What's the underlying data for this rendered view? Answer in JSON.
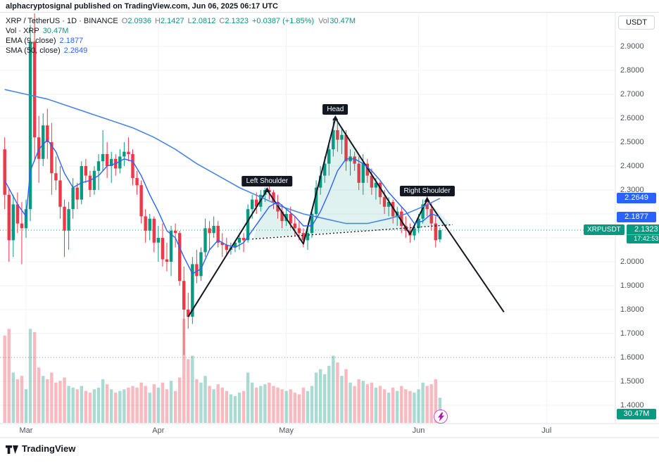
{
  "attribution": "alphacryptosignal published on TradingView.com, Jun 06, 2025 06:17 UTC",
  "header": {
    "symbol_line": {
      "title": "XRP / TetherUS · 1D · BINANCE",
      "ohlc": [
        [
          "O",
          "2.0936"
        ],
        [
          "H",
          "2.1427"
        ],
        [
          "L",
          "2.0812"
        ],
        [
          "C",
          "2.1323"
        ]
      ],
      "change": "+0.0387 (+1.85%)",
      "vol_label": "Vol",
      "vol_value": "30.47M"
    },
    "indicators": [
      {
        "label": "Vol · XRP",
        "value": "30.47M"
      },
      {
        "label": "EMA (9, close)",
        "value": "2.1877"
      },
      {
        "label": "SMA (50, close)",
        "value": "2.2649"
      }
    ]
  },
  "currency_button": "USDT",
  "badges": {
    "sma": "2.2649",
    "ema": "2.1877",
    "symbol": "XRPUSDT",
    "price": "2.1323",
    "countdown": "17:42:53",
    "volume": "30.47M"
  },
  "footer": {
    "brand": "TradingView"
  },
  "icons": {
    "lightning-icon": "⚡",
    "tradingview-logo": "TV"
  },
  "colors": {
    "up": "#089981",
    "down": "#f23645",
    "vol_up": "rgba(8,153,129,0.35)",
    "vol_down": "rgba(242,54,69,0.35)",
    "ema": "#2962ff",
    "sma": "#4a86e8",
    "badge_blue": "#2962ff",
    "badge_green": "#089981",
    "grid": "#f0f3fa",
    "axis_text": "#50535e",
    "pattern_line": "#131722"
  },
  "chart_data": {
    "type": "candlestick",
    "title": "XRP / TetherUS · 1D · BINANCE",
    "symbol": "XRPUSDT",
    "timeframe": "1D",
    "ylim": [
      1.3,
      3.07
    ],
    "grid": true,
    "price_axis_labels": [
      "2.9000",
      "2.8000",
      "2.7000",
      "2.6000",
      "2.5000",
      "2.4000",
      "2.3000",
      "2.0000",
      "1.9000",
      "1.8000",
      "1.7000",
      "1.6000",
      "1.5000",
      "1.4000"
    ],
    "time_axis": [
      {
        "label": "Mar",
        "i": 5
      },
      {
        "label": "Apr",
        "i": 36
      },
      {
        "label": "May",
        "i": 66
      },
      {
        "label": "Jun",
        "i": 97
      },
      {
        "label": "Jul",
        "i": 127
      }
    ],
    "candles": [
      [
        2.47,
        2.52,
        2.22,
        2.28
      ],
      [
        2.28,
        2.31,
        2.0,
        2.09
      ],
      [
        2.09,
        2.28,
        2.02,
        2.24
      ],
      [
        2.24,
        2.29,
        2.12,
        2.16
      ],
      [
        2.16,
        2.25,
        1.99,
        2.14
      ],
      [
        2.14,
        2.26,
        2.1,
        2.22
      ],
      [
        2.22,
        2.99,
        2.17,
        2.92
      ],
      [
        2.92,
        3.06,
        2.42,
        2.52
      ],
      [
        2.52,
        2.61,
        2.33,
        2.43
      ],
      [
        2.43,
        2.62,
        2.4,
        2.57
      ],
      [
        2.57,
        2.64,
        2.43,
        2.5
      ],
      [
        2.5,
        2.58,
        2.28,
        2.37
      ],
      [
        2.37,
        2.44,
        2.3,
        2.34
      ],
      [
        2.34,
        2.4,
        2.18,
        2.23
      ],
      [
        2.23,
        2.26,
        2.02,
        2.13
      ],
      [
        2.13,
        2.25,
        2.05,
        2.22
      ],
      [
        2.22,
        2.35,
        2.18,
        2.31
      ],
      [
        2.31,
        2.33,
        2.22,
        2.26
      ],
      [
        2.26,
        2.42,
        2.24,
        2.4
      ],
      [
        2.4,
        2.43,
        2.33,
        2.36
      ],
      [
        2.36,
        2.38,
        2.27,
        2.3
      ],
      [
        2.3,
        2.4,
        2.28,
        2.38
      ],
      [
        2.38,
        2.45,
        2.3,
        2.42
      ],
      [
        2.42,
        2.55,
        2.38,
        2.45
      ],
      [
        2.45,
        2.5,
        2.35,
        2.4
      ],
      [
        2.4,
        2.46,
        2.33,
        2.43
      ],
      [
        2.43,
        2.45,
        2.36,
        2.39
      ],
      [
        2.39,
        2.47,
        2.37,
        2.44
      ],
      [
        2.44,
        2.5,
        2.4,
        2.46
      ],
      [
        2.46,
        2.52,
        2.42,
        2.45
      ],
      [
        2.45,
        2.47,
        2.32,
        2.35
      ],
      [
        2.35,
        2.38,
        2.28,
        2.32
      ],
      [
        2.32,
        2.34,
        2.16,
        2.19
      ],
      [
        2.19,
        2.22,
        2.08,
        2.13
      ],
      [
        2.13,
        2.2,
        2.09,
        2.18
      ],
      [
        2.18,
        2.19,
        2.04,
        2.08
      ],
      [
        2.08,
        2.15,
        2.0,
        2.1
      ],
      [
        2.1,
        2.16,
        1.98,
        2.01
      ],
      [
        2.01,
        2.08,
        1.96,
        2.0
      ],
      [
        2.0,
        2.15,
        1.94,
        2.13
      ],
      [
        2.13,
        2.16,
        2.06,
        2.12
      ],
      [
        2.12,
        2.13,
        1.9,
        1.92
      ],
      [
        1.92,
        1.98,
        1.61,
        1.8
      ],
      [
        1.8,
        1.87,
        1.72,
        1.77
      ],
      [
        1.77,
        2.02,
        1.74,
        1.99
      ],
      [
        1.99,
        2.05,
        1.91,
        1.94
      ],
      [
        1.94,
        2.06,
        1.92,
        2.04
      ],
      [
        2.04,
        2.18,
        2.02,
        2.14
      ],
      [
        2.14,
        2.17,
        2.05,
        2.12
      ],
      [
        2.12,
        2.19,
        2.1,
        2.15
      ],
      [
        2.15,
        2.17,
        2.06,
        2.08
      ],
      [
        2.08,
        2.12,
        2.02,
        2.07
      ],
      [
        2.07,
        2.1,
        2.03,
        2.05
      ],
      [
        2.05,
        2.08,
        2.03,
        2.06
      ],
      [
        2.06,
        2.09,
        2.04,
        2.08
      ],
      [
        2.08,
        2.12,
        2.05,
        2.1
      ],
      [
        2.1,
        2.12,
        2.04,
        2.09
      ],
      [
        2.09,
        2.24,
        2.08,
        2.22
      ],
      [
        2.22,
        2.28,
        2.18,
        2.26
      ],
      [
        2.26,
        2.29,
        2.2,
        2.23
      ],
      [
        2.23,
        2.3,
        2.21,
        2.28
      ],
      [
        2.28,
        2.31,
        2.25,
        2.3
      ],
      [
        2.3,
        2.32,
        2.26,
        2.29
      ],
      [
        2.29,
        2.3,
        2.22,
        2.25
      ],
      [
        2.25,
        2.28,
        2.18,
        2.21
      ],
      [
        2.21,
        2.24,
        2.14,
        2.17
      ],
      [
        2.17,
        2.22,
        2.15,
        2.2
      ],
      [
        2.2,
        2.23,
        2.14,
        2.16
      ],
      [
        2.16,
        2.19,
        2.11,
        2.14
      ],
      [
        2.14,
        2.17,
        2.09,
        2.12
      ],
      [
        2.12,
        2.14,
        2.06,
        2.09
      ],
      [
        2.09,
        2.14,
        2.05,
        2.12
      ],
      [
        2.12,
        2.22,
        2.1,
        2.2
      ],
      [
        2.2,
        2.34,
        2.18,
        2.31
      ],
      [
        2.31,
        2.4,
        2.28,
        2.36
      ],
      [
        2.36,
        2.44,
        2.33,
        2.41
      ],
      [
        2.41,
        2.5,
        2.36,
        2.47
      ],
      [
        2.47,
        2.6,
        2.44,
        2.55
      ],
      [
        2.55,
        2.58,
        2.46,
        2.51
      ],
      [
        2.51,
        2.56,
        2.45,
        2.53
      ],
      [
        2.53,
        2.55,
        2.38,
        2.42
      ],
      [
        2.42,
        2.47,
        2.36,
        2.44
      ],
      [
        2.44,
        2.46,
        2.38,
        2.41
      ],
      [
        2.41,
        2.44,
        2.3,
        2.33
      ],
      [
        2.33,
        2.45,
        2.28,
        2.41
      ],
      [
        2.41,
        2.43,
        2.33,
        2.36
      ],
      [
        2.36,
        2.39,
        2.28,
        2.31
      ],
      [
        2.31,
        2.35,
        2.26,
        2.33
      ],
      [
        2.33,
        2.34,
        2.24,
        2.27
      ],
      [
        2.27,
        2.3,
        2.2,
        2.23
      ],
      [
        2.23,
        2.27,
        2.19,
        2.25
      ],
      [
        2.25,
        2.26,
        2.16,
        2.19
      ],
      [
        2.19,
        2.23,
        2.15,
        2.21
      ],
      [
        2.21,
        2.23,
        2.12,
        2.15
      ],
      [
        2.15,
        2.19,
        2.1,
        2.13
      ],
      [
        2.13,
        2.16,
        2.08,
        2.11
      ],
      [
        2.11,
        2.15,
        2.09,
        2.14
      ],
      [
        2.14,
        2.2,
        2.12,
        2.18
      ],
      [
        2.18,
        2.26,
        2.16,
        2.24
      ],
      [
        2.24,
        2.28,
        2.19,
        2.22
      ],
      [
        2.22,
        2.25,
        2.13,
        2.16
      ],
      [
        2.16,
        2.19,
        2.06,
        2.09
      ],
      [
        2.0936,
        2.1427,
        2.0812,
        2.1323
      ]
    ],
    "volumes": [
      520,
      560,
      300,
      260,
      280,
      200,
      560,
      540,
      330,
      280,
      260,
      300,
      240,
      250,
      270,
      220,
      210,
      200,
      220,
      190,
      180,
      200,
      210,
      260,
      230,
      200,
      180,
      190,
      200,
      210,
      220,
      210,
      240,
      220,
      180,
      230,
      210,
      240,
      200,
      250,
      190,
      270,
      620,
      380,
      400,
      260,
      240,
      280,
      220,
      200,
      230,
      210,
      190,
      170,
      160,
      180,
      190,
      300,
      240,
      210,
      220,
      230,
      240,
      220,
      210,
      200,
      190,
      200,
      180,
      170,
      210,
      190,
      220,
      300,
      320,
      290,
      340,
      400,
      360,
      280,
      320,
      240,
      220,
      260,
      250,
      230,
      240,
      210,
      220,
      200,
      180,
      210,
      190,
      220,
      200,
      190,
      180,
      200,
      240,
      220,
      230,
      260,
      150
    ],
    "vol_max": 620,
    "ema9": [
      [
        0,
        2.34
      ],
      [
        3,
        2.24
      ],
      [
        5,
        2.19
      ],
      [
        6,
        2.38
      ],
      [
        8,
        2.47
      ],
      [
        10,
        2.51
      ],
      [
        12,
        2.46
      ],
      [
        14,
        2.37
      ],
      [
        16,
        2.31
      ],
      [
        18,
        2.33
      ],
      [
        20,
        2.34
      ],
      [
        22,
        2.36
      ],
      [
        24,
        2.4
      ],
      [
        26,
        2.41
      ],
      [
        28,
        2.43
      ],
      [
        30,
        2.42
      ],
      [
        32,
        2.36
      ],
      [
        34,
        2.28
      ],
      [
        36,
        2.21
      ],
      [
        38,
        2.13
      ],
      [
        40,
        2.1
      ],
      [
        42,
        2.02
      ],
      [
        44,
        1.95
      ],
      [
        46,
        1.97
      ],
      [
        48,
        2.05
      ],
      [
        50,
        2.09
      ],
      [
        52,
        2.07
      ],
      [
        54,
        2.06
      ],
      [
        56,
        2.08
      ],
      [
        58,
        2.13
      ],
      [
        60,
        2.18
      ],
      [
        62,
        2.23
      ],
      [
        64,
        2.25
      ],
      [
        66,
        2.22
      ],
      [
        68,
        2.19
      ],
      [
        70,
        2.15
      ],
      [
        72,
        2.15
      ],
      [
        74,
        2.21
      ],
      [
        76,
        2.29
      ],
      [
        78,
        2.38
      ],
      [
        80,
        2.43
      ],
      [
        82,
        2.43
      ],
      [
        84,
        2.41
      ],
      [
        86,
        2.38
      ],
      [
        88,
        2.34
      ],
      [
        90,
        2.29
      ],
      [
        92,
        2.25
      ],
      [
        94,
        2.21
      ],
      [
        96,
        2.16
      ],
      [
        98,
        2.17
      ],
      [
        100,
        2.2
      ],
      [
        102,
        2.1877
      ]
    ],
    "sma50": [
      [
        0,
        2.72
      ],
      [
        5,
        2.7
      ],
      [
        10,
        2.68
      ],
      [
        15,
        2.65
      ],
      [
        20,
        2.62
      ],
      [
        25,
        2.59
      ],
      [
        30,
        2.56
      ],
      [
        35,
        2.52
      ],
      [
        40,
        2.47
      ],
      [
        45,
        2.41
      ],
      [
        50,
        2.36
      ],
      [
        55,
        2.31
      ],
      [
        60,
        2.27
      ],
      [
        65,
        2.23
      ],
      [
        70,
        2.2
      ],
      [
        75,
        2.18
      ],
      [
        80,
        2.16
      ],
      [
        85,
        2.16
      ],
      [
        90,
        2.18
      ],
      [
        94,
        2.2
      ],
      [
        98,
        2.23
      ],
      [
        102,
        2.2649
      ]
    ],
    "level_lines": [
      {
        "price": 2.1323,
        "color": "#089981"
      },
      {
        "price": 1.6,
        "color": "#9aa0a6"
      }
    ],
    "pattern": {
      "name": "Head and Shoulders",
      "line": [
        [
          43,
          1.77
        ],
        [
          61.5,
          2.3
        ],
        [
          70,
          2.075
        ],
        [
          77.5,
          2.6
        ],
        [
          95,
          2.115
        ],
        [
          99,
          2.26
        ],
        [
          117,
          1.79
        ]
      ],
      "neckline": [
        [
          58,
          2.095
        ],
        [
          105,
          2.155
        ]
      ],
      "fill": [
        [
          58.3,
          2.1
        ],
        [
          61.5,
          2.3
        ],
        [
          70,
          2.075
        ],
        [
          77.5,
          2.6
        ],
        [
          95,
          2.115
        ],
        [
          99,
          2.26
        ],
        [
          104.5,
          2.155
        ]
      ],
      "fill_color": "rgba(8,153,129,0.13)",
      "markers": [
        [
          61.5,
          2.3
        ],
        [
          77.5,
          2.6
        ],
        [
          99,
          2.26
        ]
      ],
      "labels": [
        {
          "text": "Left Shoulder",
          "i": 61.5,
          "p": 2.3
        },
        {
          "text": "Head",
          "i": 77.5,
          "p": 2.6
        },
        {
          "text": "Right Shoulder",
          "i": 99,
          "p": 2.26
        }
      ]
    }
  }
}
